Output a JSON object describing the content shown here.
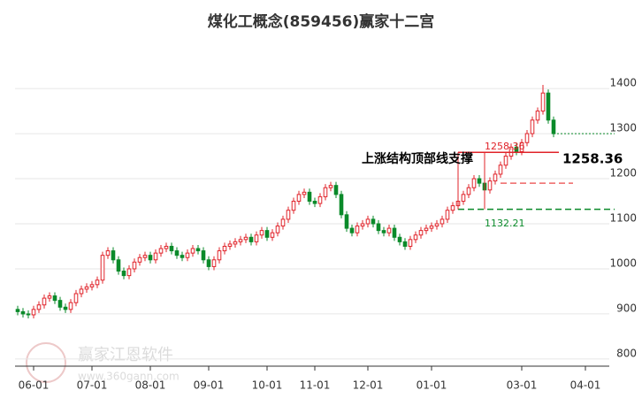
{
  "chart_data": {
    "type": "candlestick",
    "title": "煤化工概念(859456)赢家十二宫",
    "ohlc": [
      [
        910,
        918,
        897,
        905
      ],
      [
        905,
        913,
        892,
        900
      ],
      [
        900,
        908,
        890,
        898
      ],
      [
        898,
        918,
        890,
        910
      ],
      [
        910,
        928,
        902,
        920
      ],
      [
        920,
        943,
        912,
        935
      ],
      [
        935,
        948,
        927,
        940
      ],
      [
        940,
        948,
        922,
        930
      ],
      [
        930,
        938,
        907,
        915
      ],
      [
        915,
        923,
        902,
        910
      ],
      [
        910,
        933,
        902,
        925
      ],
      [
        925,
        953,
        917,
        945
      ],
      [
        945,
        963,
        937,
        955
      ],
      [
        955,
        968,
        947,
        960
      ],
      [
        960,
        973,
        952,
        965
      ],
      [
        965,
        983,
        957,
        975
      ],
      [
        975,
        1038,
        967,
        1030
      ],
      [
        1030,
        1048,
        1022,
        1040
      ],
      [
        1040,
        1048,
        1012,
        1020
      ],
      [
        1020,
        1028,
        987,
        995
      ],
      [
        995,
        1003,
        977,
        985
      ],
      [
        985,
        1008,
        977,
        1000
      ],
      [
        1000,
        1023,
        992,
        1015
      ],
      [
        1015,
        1033,
        1007,
        1025
      ],
      [
        1025,
        1038,
        1017,
        1030
      ],
      [
        1030,
        1038,
        1012,
        1020
      ],
      [
        1020,
        1043,
        1012,
        1035
      ],
      [
        1035,
        1053,
        1027,
        1045
      ],
      [
        1045,
        1058,
        1037,
        1050
      ],
      [
        1050,
        1058,
        1032,
        1040
      ],
      [
        1040,
        1048,
        1022,
        1030
      ],
      [
        1030,
        1038,
        1017,
        1025
      ],
      [
        1025,
        1043,
        1017,
        1035
      ],
      [
        1035,
        1053,
        1027,
        1045
      ],
      [
        1045,
        1053,
        1032,
        1040
      ],
      [
        1040,
        1048,
        1012,
        1020
      ],
      [
        1020,
        1028,
        997,
        1005
      ],
      [
        1005,
        1028,
        997,
        1020
      ],
      [
        1020,
        1048,
        1012,
        1040
      ],
      [
        1040,
        1058,
        1032,
        1050
      ],
      [
        1050,
        1063,
        1042,
        1055
      ],
      [
        1055,
        1068,
        1047,
        1060
      ],
      [
        1060,
        1073,
        1052,
        1065
      ],
      [
        1065,
        1078,
        1057,
        1070
      ],
      [
        1070,
        1078,
        1052,
        1060
      ],
      [
        1060,
        1083,
        1052,
        1075
      ],
      [
        1075,
        1093,
        1067,
        1085
      ],
      [
        1085,
        1093,
        1062,
        1070
      ],
      [
        1070,
        1088,
        1062,
        1080
      ],
      [
        1080,
        1103,
        1072,
        1095
      ],
      [
        1095,
        1118,
        1087,
        1110
      ],
      [
        1110,
        1138,
        1102,
        1130
      ],
      [
        1130,
        1158,
        1122,
        1150
      ],
      [
        1150,
        1173,
        1142,
        1165
      ],
      [
        1165,
        1178,
        1157,
        1170
      ],
      [
        1170,
        1178,
        1142,
        1150
      ],
      [
        1150,
        1158,
        1137,
        1145
      ],
      [
        1145,
        1168,
        1137,
        1160
      ],
      [
        1160,
        1188,
        1152,
        1180
      ],
      [
        1180,
        1193,
        1172,
        1185
      ],
      [
        1185,
        1193,
        1157,
        1165
      ],
      [
        1165,
        1173,
        1112,
        1120
      ],
      [
        1120,
        1128,
        1082,
        1090
      ],
      [
        1090,
        1098,
        1072,
        1080
      ],
      [
        1080,
        1103,
        1072,
        1095
      ],
      [
        1095,
        1108,
        1087,
        1100
      ],
      [
        1100,
        1118,
        1092,
        1110
      ],
      [
        1110,
        1118,
        1092,
        1100
      ],
      [
        1100,
        1108,
        1077,
        1085
      ],
      [
        1085,
        1093,
        1072,
        1080
      ],
      [
        1080,
        1098,
        1072,
        1090
      ],
      [
        1090,
        1098,
        1062,
        1070
      ],
      [
        1070,
        1078,
        1052,
        1060
      ],
      [
        1060,
        1068,
        1042,
        1050
      ],
      [
        1050,
        1073,
        1042,
        1065
      ],
      [
        1065,
        1083,
        1057,
        1075
      ],
      [
        1075,
        1093,
        1067,
        1085
      ],
      [
        1085,
        1098,
        1077,
        1090
      ],
      [
        1090,
        1103,
        1082,
        1095
      ],
      [
        1095,
        1108,
        1087,
        1100
      ],
      [
        1100,
        1118,
        1092,
        1110
      ],
      [
        1110,
        1138,
        1102,
        1130
      ],
      [
        1130,
        1148,
        1122,
        1140
      ],
      [
        1140,
        1158,
        1132,
        1150
      ],
      [
        1150,
        1173,
        1142,
        1165
      ],
      [
        1165,
        1188,
        1157,
        1180
      ],
      [
        1180,
        1208,
        1172,
        1200
      ],
      [
        1200,
        1208,
        1182,
        1190
      ],
      [
        1190,
        1198,
        1167,
        1175
      ],
      [
        1175,
        1203,
        1167,
        1195
      ],
      [
        1195,
        1218,
        1187,
        1210
      ],
      [
        1210,
        1238,
        1202,
        1230
      ],
      [
        1230,
        1258,
        1222,
        1250
      ],
      [
        1250,
        1278,
        1242,
        1270
      ],
      [
        1270,
        1278,
        1252,
        1260
      ],
      [
        1260,
        1288,
        1252,
        1280
      ],
      [
        1280,
        1308,
        1272,
        1300
      ],
      [
        1300,
        1338,
        1292,
        1330
      ],
      [
        1330,
        1358,
        1322,
        1350
      ],
      [
        1350,
        1408,
        1342,
        1390
      ],
      [
        1390,
        1398,
        1322,
        1330
      ],
      [
        1330,
        1338,
        1292,
        1300
      ]
    ],
    "up_color": "#e0232a",
    "down_color": "#0a8a2a",
    "xlim": [
      -0.5,
      111.5
    ],
    "xticks": [
      {
        "value": 3,
        "label": "06-01"
      },
      {
        "value": 14,
        "label": "07-01"
      },
      {
        "value": 25,
        "label": "08-01"
      },
      {
        "value": 36,
        "label": "09-01"
      },
      {
        "value": 47,
        "label": "10-01"
      },
      {
        "value": 56,
        "label": "11-01"
      },
      {
        "value": 66,
        "label": "12-01"
      },
      {
        "value": 78,
        "label": "01-01"
      },
      {
        "value": 95,
        "label": "03-01"
      },
      {
        "value": 107,
        "label": "04-01"
      }
    ],
    "ylim": [
      790,
      1410
    ],
    "yticks": [
      800,
      900,
      1000,
      1100,
      1200,
      1300,
      1400
    ],
    "grid": true,
    "annotation": "上涨结构顶部线支撑",
    "resistance": 1258.36,
    "support": 1132.21,
    "dashed_level": 1190,
    "watermark": [
      "赢家江恩软件",
      "www.360gann.com"
    ]
  }
}
